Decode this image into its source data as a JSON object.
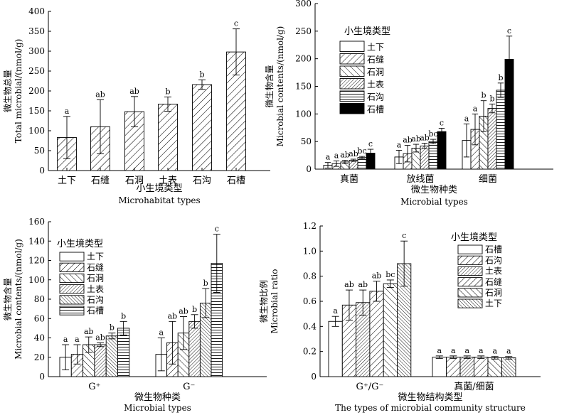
{
  "chart_data": [
    {
      "type": "bar",
      "panel": "a",
      "ylabel_cn": "微生物总量",
      "ylabel_en": "Total microbial/(nmol/g)",
      "xlabel_cn": "小生境类型",
      "xlabel_en": "Microhabitat types",
      "ylim": [
        0,
        400
      ],
      "yticks": [
        "0",
        "50",
        "100",
        "150",
        "200",
        "250",
        "300",
        "350",
        "400"
      ],
      "categories": [
        "土下",
        "石缝",
        "石洞",
        "土表",
        "石沟",
        "石槽"
      ],
      "values": [
        83,
        110,
        148,
        167,
        216,
        298
      ],
      "errors": [
        53,
        68,
        38,
        18,
        12,
        58
      ],
      "letters": [
        "a",
        "ab",
        "ab",
        "b",
        "b",
        "c"
      ],
      "patterns": [
        "diag",
        "diag",
        "diag",
        "diag",
        "diag",
        "diag"
      ]
    },
    {
      "type": "bar",
      "panel": "b",
      "ylabel_cn": "微生物含量",
      "ylabel_en": "Microbial contents/(nmol/g)",
      "xlabel_cn": "微生物种类",
      "xlabel_en": "Microbial types",
      "ylim": [
        0,
        300
      ],
      "yticks": [
        "0",
        "50",
        "100",
        "150",
        "200",
        "250",
        "300"
      ],
      "legend_title": "小生境类型",
      "legend": [
        "土下",
        "石缝",
        "石洞",
        "土表",
        "石沟",
        "石槽"
      ],
      "patterns": [
        "white",
        "fwd",
        "back",
        "fwddense",
        "hlines",
        "black"
      ],
      "categories": [
        "真菌",
        "放线菌",
        "细菌"
      ],
      "series_values": [
        [
          7,
          10,
          13,
          16,
          21,
          29
        ],
        [
          22,
          28,
          38,
          42,
          50,
          68
        ],
        [
          52,
          72,
          96,
          110,
          143,
          199
        ]
      ],
      "series_errors": [
        [
          5,
          5,
          3,
          2,
          2,
          7
        ],
        [
          12,
          15,
          7,
          5,
          4,
          6
        ],
        [
          30,
          28,
          28,
          8,
          13,
          42
        ]
      ],
      "letters": [
        [
          "a",
          "a",
          "ab",
          "ab",
          "bc",
          "c"
        ],
        [
          "a",
          "ab",
          "ab",
          "ab",
          "bc",
          "c"
        ],
        [
          "a",
          "a",
          "b",
          "b",
          "b",
          "c"
        ]
      ]
    },
    {
      "type": "bar",
      "panel": "c",
      "ylabel_cn": "微生物含量",
      "ylabel_en": "Microbial contents/(nmol/g)",
      "xlabel_cn": "微生物种类",
      "xlabel_en": "Microbial types",
      "ylim": [
        0,
        160
      ],
      "yticks": [
        "0",
        "20",
        "40",
        "60",
        "80",
        "100",
        "120",
        "140",
        "160"
      ],
      "legend_title": "小生境类型",
      "legend": [
        "土下",
        "石缝",
        "石洞",
        "土表",
        "石沟",
        "石槽"
      ],
      "patterns": [
        "white",
        "fwd",
        "back",
        "fwddense",
        "backdense",
        "hlines"
      ],
      "categories": [
        "G⁺",
        "G⁻"
      ],
      "series_values": [
        [
          20,
          23,
          33,
          33,
          42,
          50
        ],
        [
          23,
          35,
          45,
          57,
          76,
          117
        ]
      ],
      "series_errors": [
        [
          13,
          10,
          8,
          2,
          3,
          7
        ],
        [
          17,
          22,
          17,
          7,
          15,
          30
        ]
      ],
      "letters": [
        [
          "a",
          "a",
          "ab",
          "ab",
          "b",
          "b"
        ],
        [
          "a",
          "ab",
          "ab",
          "b",
          "b",
          "c"
        ]
      ]
    },
    {
      "type": "bar",
      "panel": "d",
      "ylabel_cn": "微生物比例",
      "ylabel_en": "Microbial ratio",
      "xlabel_cn": "微生物结构类型",
      "xlabel_en": "The types of microbial community structure",
      "ylim": [
        0,
        1.2
      ],
      "yticks": [
        "0",
        "0.2",
        "0.4",
        "0.6",
        "0.8",
        "1.0",
        "1.2"
      ],
      "legend_title": "小生境类型",
      "legend": [
        "石槽",
        "石沟",
        "土表",
        "石缝",
        "石洞",
        "土下"
      ],
      "patterns": [
        "white",
        "fwd",
        "fwddense",
        "fwd",
        "back",
        "backdense"
      ],
      "categories": [
        "G⁺/G⁻",
        "真菌/细菌"
      ],
      "series_values": [
        [
          0.44,
          0.57,
          0.59,
          0.68,
          0.74,
          0.9
        ],
        [
          0.155,
          0.155,
          0.155,
          0.155,
          0.15,
          0.15
        ]
      ],
      "series_errors": [
        [
          0.04,
          0.12,
          0.1,
          0.08,
          0.03,
          0.18
        ],
        [
          0.01,
          0.01,
          0.01,
          0.01,
          0.01,
          0.01
        ]
      ],
      "letters": [
        [
          "a",
          "ab",
          "ab",
          "ab",
          "bc",
          "c"
        ],
        [
          "a",
          "a",
          "a",
          "a",
          "a",
          "a"
        ]
      ]
    }
  ]
}
